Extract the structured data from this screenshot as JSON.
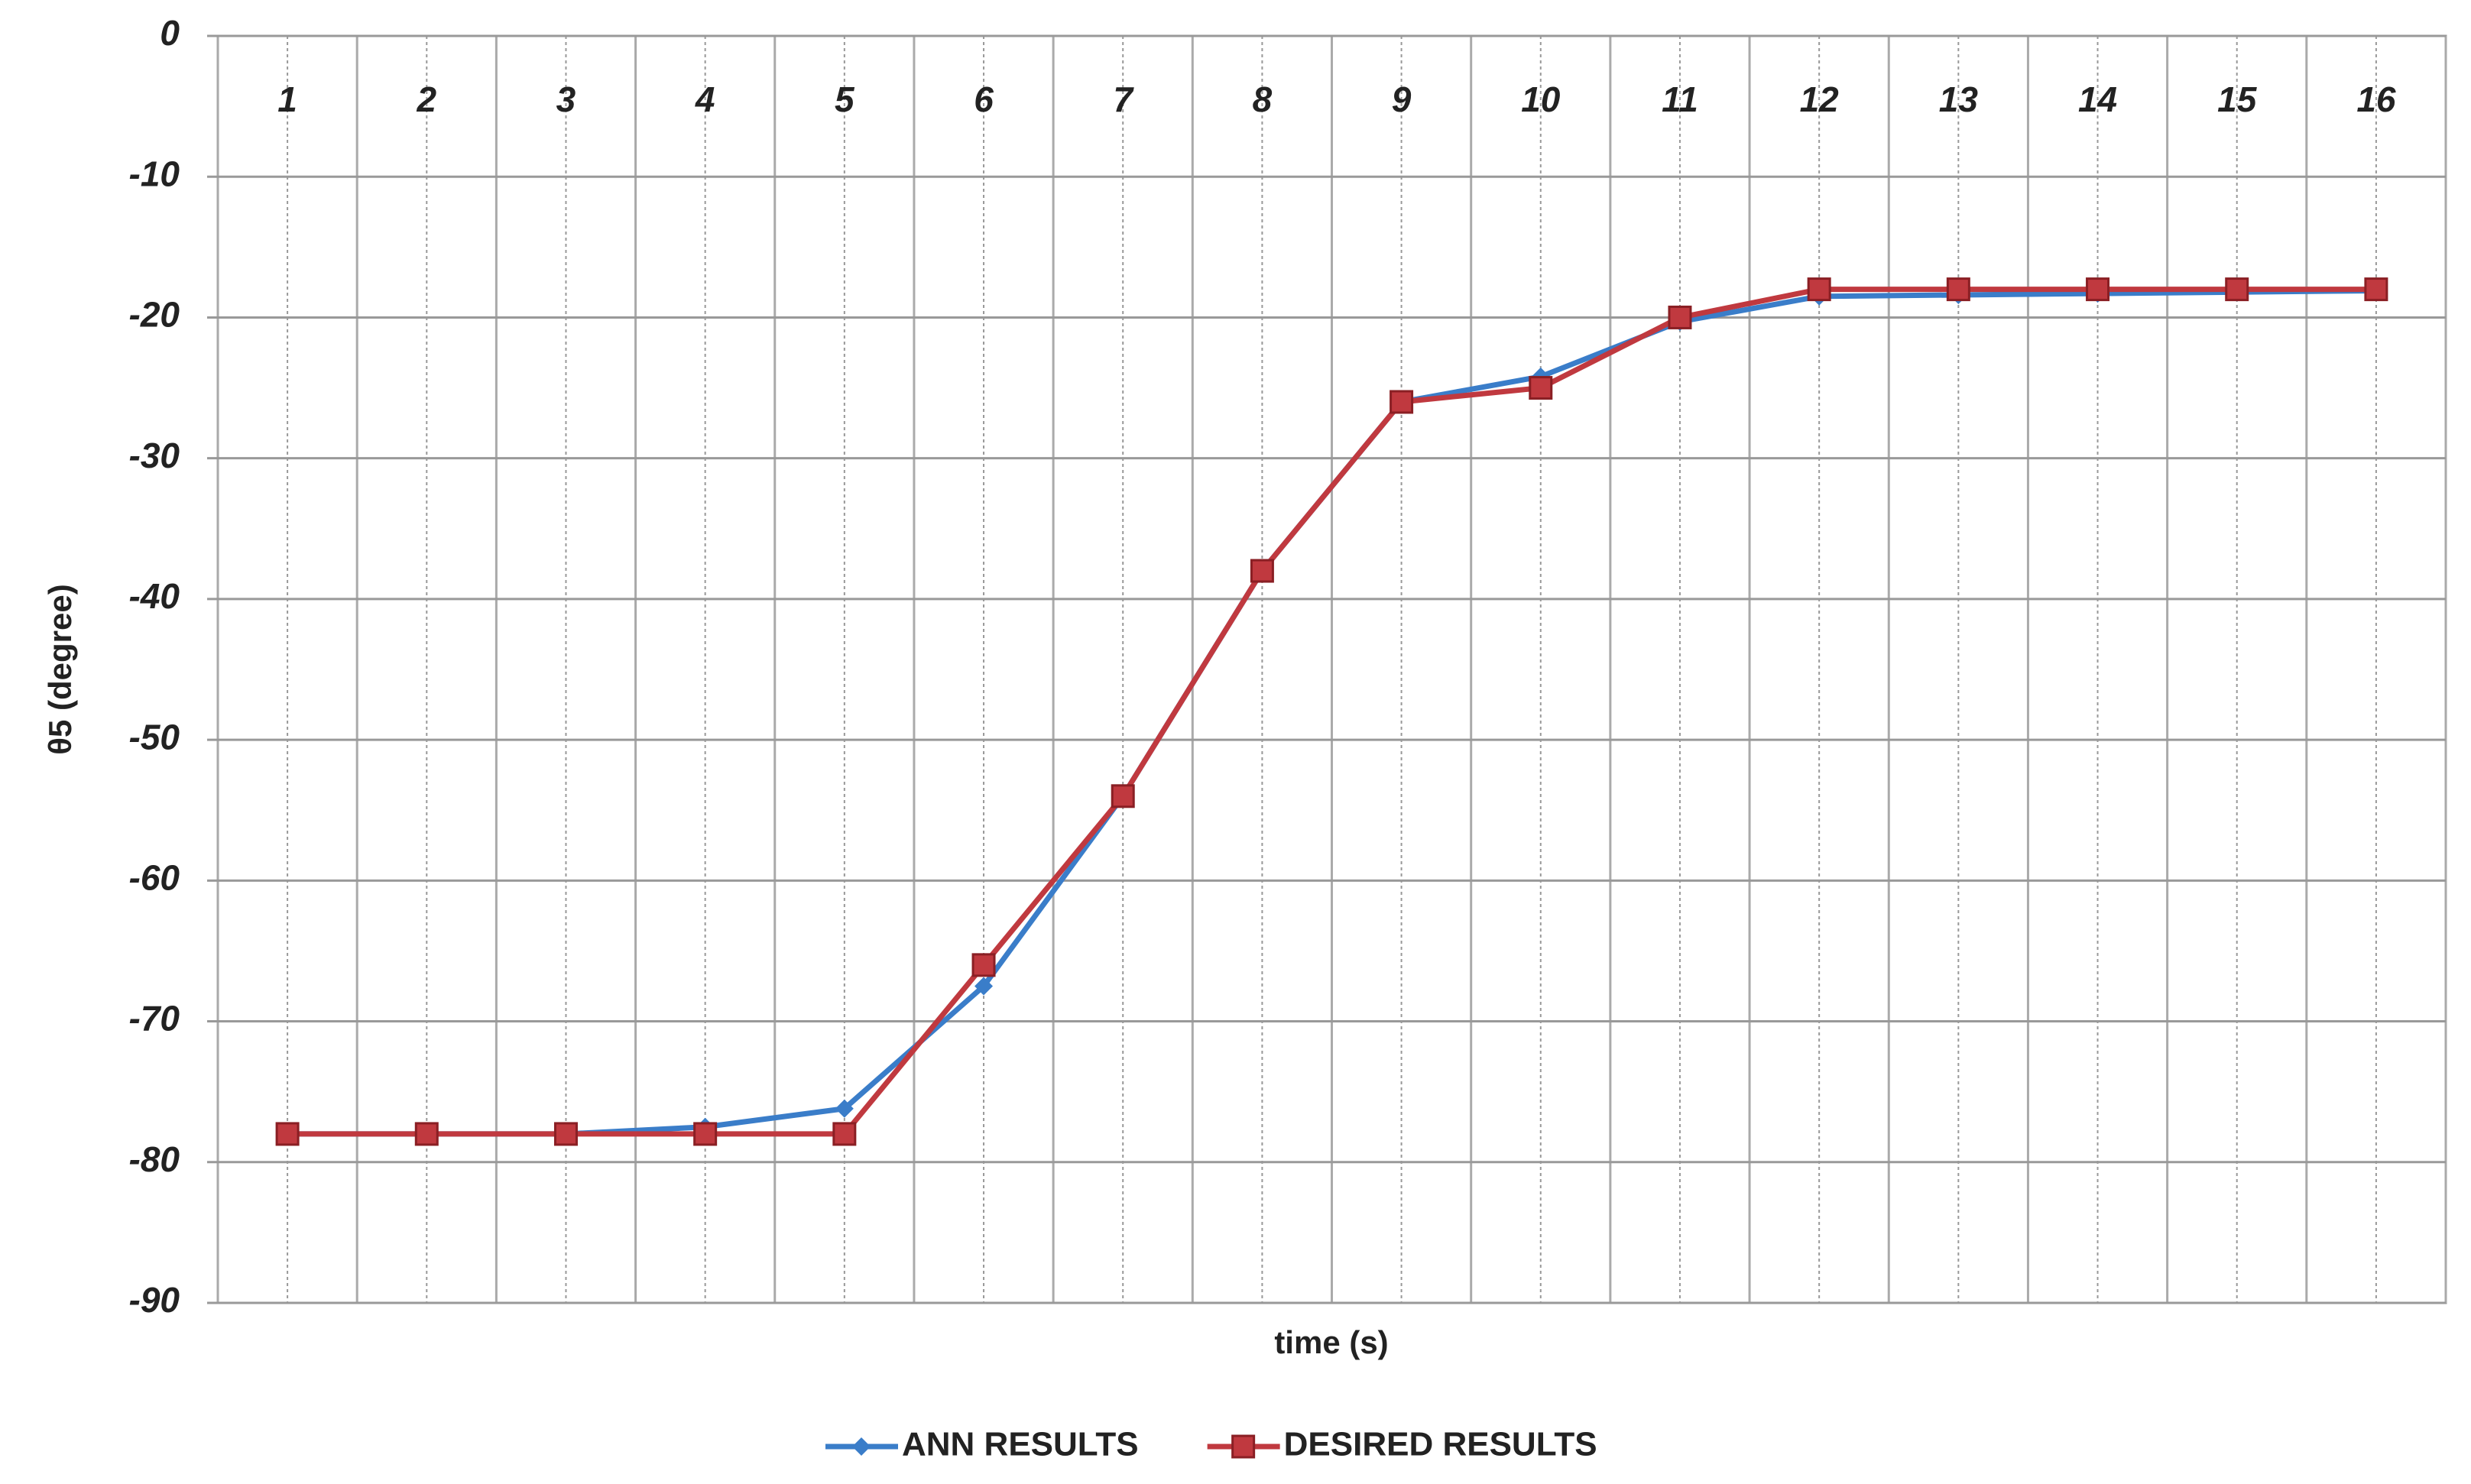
{
  "chart_data": {
    "type": "line",
    "x_label": "time (s)",
    "y_label": "θ5 (degree)",
    "categories": [
      "1",
      "2",
      "3",
      "4",
      "5",
      "6",
      "7",
      "8",
      "9",
      "10",
      "11",
      "12",
      "13",
      "14",
      "15",
      "16"
    ],
    "series": [
      {
        "name": "ANN RESULTS",
        "color": "#3a7dc9",
        "marker": "diamond",
        "values": [
          -78,
          -78,
          -78,
          -77.5,
          -76.2,
          -67.5,
          -54,
          -38,
          -26,
          -24.2,
          -20.3,
          -18.5,
          -18.4,
          -18.3,
          -18.2,
          -18.1
        ]
      },
      {
        "name": "DESIRED RESULTS",
        "color": "#c0393f",
        "marker": "square",
        "values": [
          -78,
          -78,
          -78,
          -78,
          -78,
          -66,
          -54,
          -38,
          -26,
          -25,
          -20,
          -18,
          -18,
          -18,
          -18,
          -18
        ]
      }
    ],
    "ylim": [
      -90,
      0
    ],
    "yticks": [
      0,
      -10,
      -20,
      -30,
      -40,
      -50,
      -60,
      -70,
      -80,
      -90
    ],
    "grid": true,
    "legend": "bottom"
  }
}
